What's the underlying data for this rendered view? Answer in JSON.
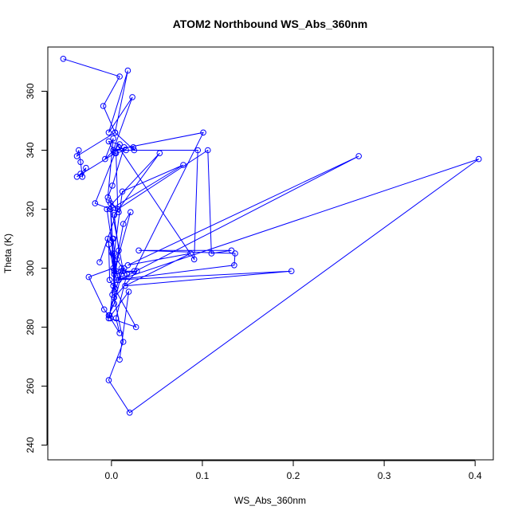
{
  "chart_data": {
    "type": "line",
    "title": "ATOM2 Northbound WS_Abs_360nm",
    "xlabel": "WS_Abs_360nm",
    "ylabel": "Theta (K)",
    "xlim": [
      -0.07,
      0.42
    ],
    "ylim": [
      235,
      375
    ],
    "xticks": [
      0.0,
      0.1,
      0.2,
      0.3,
      0.4
    ],
    "xtick_labels": [
      "0.0",
      "0.1",
      "0.2",
      "0.3",
      "0.4"
    ],
    "yticks": [
      240,
      260,
      280,
      300,
      320,
      340,
      360
    ],
    "ytick_labels": [
      "240",
      "260",
      "280",
      "300",
      "320",
      "340",
      "360"
    ],
    "grid": false,
    "legend": "none",
    "series_color": "#0000ff",
    "marker": "open-circle",
    "x": [
      -0.053,
      0.009,
      -0.009,
      0.004,
      0.018,
      -0.003,
      0.023,
      0.002,
      -0.003,
      0.009,
      -0.007,
      0.002,
      -0.004,
      0.001,
      0.014,
      0.024,
      0.025,
      0.004,
      -0.038,
      -0.036,
      -0.034,
      -0.032,
      -0.028,
      -0.034,
      -0.038,
      0.004,
      -0.018,
      0.008,
      -0.003,
      0.007,
      -0.013,
      -0.004,
      0.002,
      -0.025,
      -0.008,
      -0.003,
      0.003,
      0.011,
      0.014,
      0.008,
      -0.003,
      -0.002,
      0.002,
      0.027,
      -0.001,
      0.009,
      0.005,
      0.017,
      0.001,
      0.002,
      0.005,
      -0.005,
      0.053,
      0.003,
      0.008,
      0.001,
      -0.002,
      0.006,
      0.013,
      0.021,
      0.003,
      0.003,
      -0.001,
      0.079,
      0.012,
      0.003,
      0.004,
      0.001,
      -0.001,
      0.013,
      0.025,
      0.101,
      0.002,
      0.095,
      0.091,
      0.008,
      0.016,
      0.005,
      0.007,
      0.106,
      0.11,
      0.132,
      0.03,
      0.136,
      0.135,
      0.005,
      0.198,
      0.015,
      0.087,
      0.018,
      0.272,
      0.008,
      0.404,
      0.02,
      -0.003,
      0.013,
      0.003,
      0.028,
      0.003,
      0.011,
      -0.003,
      0.019,
      0.009
    ],
    "y": [
      371,
      365,
      355,
      346,
      367,
      346,
      358,
      340,
      343,
      342,
      337,
      344,
      324,
      328,
      341,
      341,
      340,
      346,
      338,
      340,
      336,
      331,
      334,
      332,
      331,
      339,
      322,
      319,
      323,
      320,
      302,
      310,
      300,
      297,
      286,
      284,
      288,
      298,
      300,
      296,
      308,
      296,
      294,
      280,
      283,
      278,
      283,
      298,
      305,
      310,
      299,
      320,
      339,
      318,
      306,
      291,
      284,
      303,
      315,
      319,
      299,
      292,
      320,
      335,
      326,
      305,
      293,
      310,
      322,
      299,
      299,
      346,
      340,
      340,
      303,
      341,
      340,
      339,
      320,
      340,
      305,
      306,
      306,
      305,
      301,
      296,
      299,
      294,
      305,
      301,
      338,
      296,
      337,
      251,
      262,
      275,
      290,
      299,
      298,
      300,
      283,
      292,
      269
    ]
  }
}
